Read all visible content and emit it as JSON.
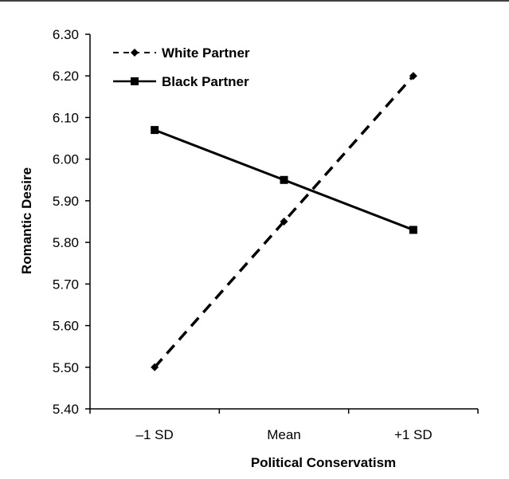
{
  "chart_data": {
    "type": "line",
    "categories": [
      "–1 SD",
      "Mean",
      "+1 SD"
    ],
    "series": [
      {
        "name": "White Partner",
        "values": [
          5.5,
          5.85,
          6.2
        ],
        "line_style": "dashed",
        "marker": "diamond",
        "color": "#000000"
      },
      {
        "name": "Black Partner",
        "values": [
          6.07,
          5.95,
          5.83
        ],
        "line_style": "solid",
        "marker": "square",
        "color": "#000000"
      }
    ],
    "y_ticks": [
      "5.40",
      "5.50",
      "5.60",
      "5.70",
      "5.80",
      "5.90",
      "6.00",
      "6.10",
      "6.20",
      "6.30"
    ],
    "ylim": [
      5.4,
      6.3
    ],
    "xlabel": "Political Conservatism",
    "ylabel": "Romantic Desire",
    "grid": false,
    "legend_position": "top-left"
  }
}
